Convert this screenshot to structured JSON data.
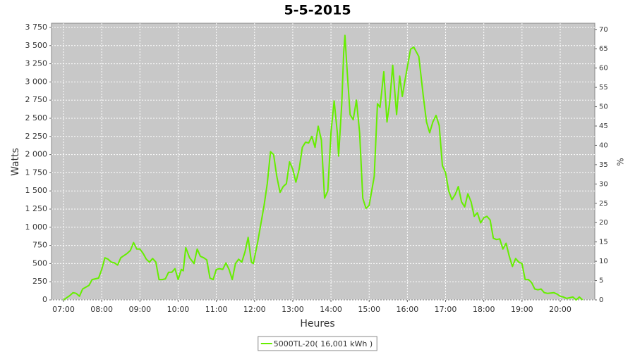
{
  "chart_data": {
    "type": "line",
    "title": "5-5-2015",
    "xlabel": "Heures",
    "ylabel": "Watts",
    "y2label": "%",
    "x": [
      7,
      7.167,
      7.25,
      7.333,
      7.417,
      7.5,
      7.667,
      7.75,
      7.917,
      8,
      8.083,
      8.167,
      8.25,
      8.333,
      8.417,
      8.5,
      8.667,
      8.75,
      8.833,
      8.917,
      9,
      9.083,
      9.167,
      9.25,
      9.333,
      9.417,
      9.5,
      9.583,
      9.667,
      9.75,
      9.833,
      9.917,
      10,
      10.083,
      10.133,
      10.2,
      10.3,
      10.417,
      10.5,
      10.583,
      10.667,
      10.75,
      10.833,
      10.917,
      11,
      11.083,
      11.167,
      11.25,
      11.333,
      11.417,
      11.5,
      11.583,
      11.667,
      11.75,
      11.833,
      11.917,
      11.967,
      12.083,
      12.25,
      12.333,
      12.417,
      12.5,
      12.583,
      12.667,
      12.75,
      12.833,
      12.917,
      13,
      13.083,
      13.167,
      13.25,
      13.333,
      13.417,
      13.5,
      13.583,
      13.667,
      13.75,
      13.833,
      13.917,
      14,
      14.083,
      14.167,
      14.2,
      14.283,
      14.333,
      14.367,
      14.417,
      14.5,
      14.583,
      14.667,
      14.75,
      14.833,
      14.917,
      15,
      15.133,
      15.217,
      15.283,
      15.383,
      15.467,
      15.533,
      15.617,
      15.717,
      15.8,
      15.867,
      15.95,
      16.083,
      16.167,
      16.3,
      16.417,
      16.5,
      16.583,
      16.667,
      16.75,
      16.833,
      16.917,
      17,
      17.083,
      17.167,
      17.25,
      17.333,
      17.417,
      17.5,
      17.583,
      17.667,
      17.75,
      17.833,
      17.917,
      18,
      18.083,
      18.167,
      18.25,
      18.333,
      18.417,
      18.5,
      18.583,
      18.667,
      18.75,
      18.833,
      18.917,
      19,
      19.083,
      19.167,
      19.25,
      19.333,
      19.417,
      19.5,
      19.583,
      19.667,
      19.833,
      19.917,
      20,
      20.083,
      20.167,
      20.25,
      20.333,
      20.417,
      20.5,
      20.583
    ],
    "series": [
      {
        "name": "5000TL-20( 16,001 kWh )",
        "color": "#66ee00",
        "values": [
          0,
          60,
          100,
          90,
          50,
          150,
          200,
          280,
          300,
          420,
          580,
          560,
          520,
          510,
          480,
          580,
          640,
          680,
          790,
          700,
          700,
          640,
          560,
          520,
          570,
          520,
          280,
          280,
          290,
          380,
          380,
          430,
          280,
          420,
          400,
          720,
          580,
          500,
          700,
          600,
          580,
          550,
          300,
          280,
          420,
          430,
          420,
          510,
          420,
          280,
          500,
          560,
          520,
          660,
          860,
          520,
          500,
          800,
          1300,
          1600,
          2040,
          2000,
          1700,
          1480,
          1560,
          1600,
          1900,
          1800,
          1620,
          1800,
          2100,
          2170,
          2160,
          2250,
          2100,
          2390,
          2200,
          1400,
          1500,
          2300,
          2740,
          2300,
          1980,
          2700,
          3400,
          3640,
          3200,
          2550,
          2480,
          2750,
          2300,
          1400,
          1260,
          1300,
          1700,
          2700,
          2650,
          3140,
          2450,
          2700,
          3230,
          2550,
          3080,
          2800,
          3060,
          3450,
          3480,
          3350,
          2800,
          2450,
          2300,
          2450,
          2540,
          2400,
          1850,
          1750,
          1500,
          1380,
          1450,
          1560,
          1350,
          1280,
          1460,
          1350,
          1150,
          1200,
          1060,
          1130,
          1150,
          1100,
          850,
          830,
          840,
          700,
          780,
          600,
          460,
          570,
          520,
          500,
          280,
          280,
          240,
          150,
          140,
          150,
          100,
          90,
          100,
          80,
          50,
          40,
          20,
          30,
          40,
          0,
          40,
          0
        ]
      }
    ],
    "xlim": [
      6.686,
      20.905
    ],
    "xticks": [
      {
        "value": 7,
        "label": "07:00"
      },
      {
        "value": 8,
        "label": "08:00"
      },
      {
        "value": 9,
        "label": "09:00"
      },
      {
        "value": 10,
        "label": "10:00"
      },
      {
        "value": 11,
        "label": "11:00"
      },
      {
        "value": 12,
        "label": "12:00"
      },
      {
        "value": 13,
        "label": "13:00"
      },
      {
        "value": 14,
        "label": "14:00"
      },
      {
        "value": 15,
        "label": "15:00"
      },
      {
        "value": 16,
        "label": "16:00"
      },
      {
        "value": 17,
        "label": "17:00"
      },
      {
        "value": 18,
        "label": "18:00"
      },
      {
        "value": 19,
        "label": "19:00"
      },
      {
        "value": 20,
        "label": "20:00"
      }
    ],
    "ylim": [
      0,
      3808
    ],
    "yticks": [
      0,
      250,
      500,
      750,
      {
        "value": 1000,
        "label": "1 000"
      },
      {
        "value": 1250,
        "label": "1 250"
      },
      {
        "value": 1500,
        "label": "1 500"
      },
      {
        "value": 1750,
        "label": "1 750"
      },
      {
        "value": 2000,
        "label": "2 000"
      },
      {
        "value": 2250,
        "label": "2 250"
      },
      {
        "value": 2500,
        "label": "2 500"
      },
      {
        "value": 2750,
        "label": "2 750"
      },
      {
        "value": 3000,
        "label": "3 000"
      },
      {
        "value": 3250,
        "label": "3 250"
      },
      {
        "value": 3500,
        "label": "3 500"
      },
      {
        "value": 3750,
        "label": "3 750"
      }
    ],
    "y2lim": [
      0,
      71.6
    ],
    "y2ticks": [
      0,
      5,
      10,
      15,
      20,
      25,
      30,
      35,
      40,
      45,
      50,
      55,
      60,
      65,
      70
    ],
    "grid": true
  }
}
